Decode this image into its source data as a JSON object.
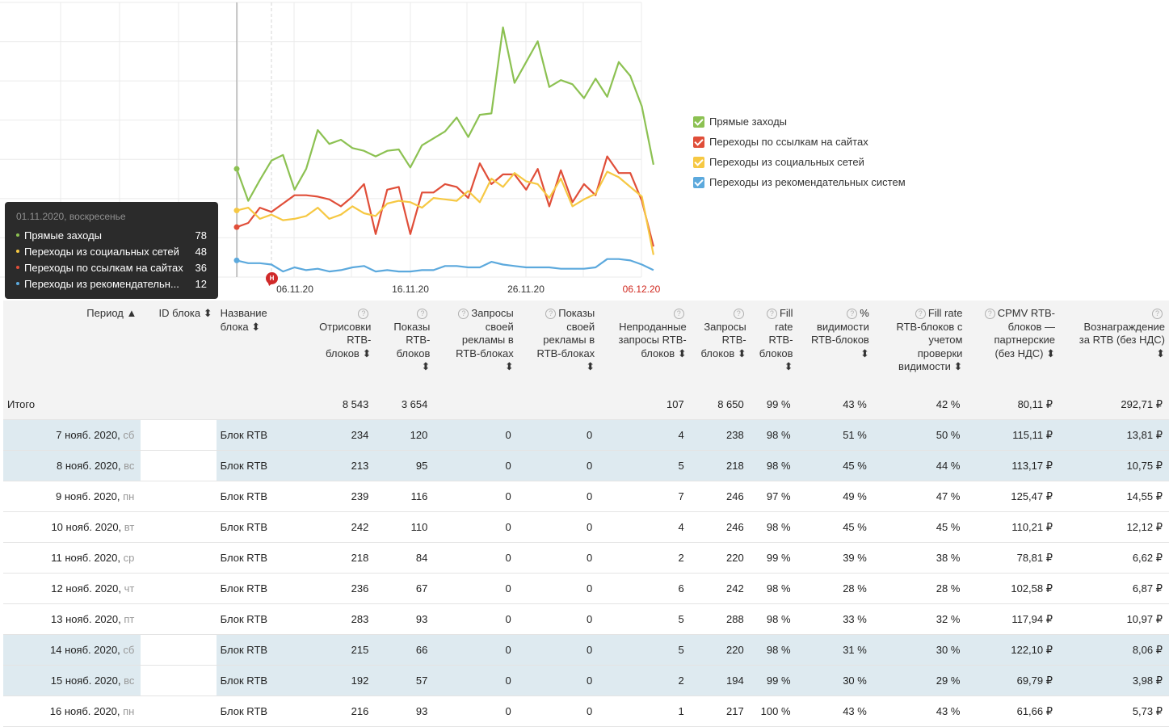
{
  "chart_data": {
    "type": "line",
    "x_ticks": [
      "06.11.20",
      "16.11.20",
      "26.11.20",
      "06.12.20"
    ],
    "highlighted_tick": "06.12.20",
    "series": [
      {
        "name": "Прямые заходы",
        "color": "#8cc152",
        "values": [
          78,
          55,
          70,
          84,
          88,
          63,
          78,
          106,
          96,
          99,
          93,
          91,
          87,
          91,
          92,
          79,
          95,
          100,
          105,
          115,
          101,
          117,
          118,
          180,
          140,
          155,
          170,
          137,
          142,
          139,
          129,
          143,
          130,
          155,
          145,
          123,
          81
        ]
      },
      {
        "name": "Переходы по ссылкам на сайтах",
        "color": "#e04e39",
        "values": [
          36,
          39,
          50,
          47,
          53,
          59,
          59,
          58,
          56,
          51,
          58,
          67,
          31,
          63,
          65,
          31,
          61,
          61,
          67,
          65,
          57,
          82,
          67,
          74,
          74,
          63,
          78,
          51,
          77,
          54,
          67,
          59,
          87,
          75,
          75,
          55,
          22
        ]
      },
      {
        "name": "Переходы из социальных сетей",
        "color": "#f6c843",
        "values": [
          48,
          50,
          42,
          45,
          41,
          42,
          44,
          50,
          42,
          45,
          51,
          46,
          44,
          53,
          55,
          54,
          50,
          57,
          56,
          55,
          62,
          54,
          71,
          65,
          75,
          69,
          67,
          57,
          71,
          51,
          56,
          60,
          76,
          72,
          65,
          58,
          16
        ]
      },
      {
        "name": "Переходы из рекомендательных систем",
        "color": "#5ca9dd",
        "values": [
          12,
          10,
          10,
          9,
          4,
          7,
          5,
          6,
          4,
          5,
          7,
          8,
          4,
          5,
          4,
          4,
          5,
          5,
          8,
          8,
          7,
          7,
          11,
          9,
          8,
          7,
          7,
          7,
          6,
          6,
          6,
          7,
          13,
          13,
          12,
          9,
          5
        ]
      }
    ],
    "legend_position": "right",
    "grid": true,
    "tooltip": {
      "date": "01.11.2020, воскресенье",
      "rows": [
        {
          "label": "Прямые заходы",
          "value": "78",
          "color": "#8cc152"
        },
        {
          "label": "Переходы из социальных сетей",
          "value": "48",
          "color": "#f6c843"
        },
        {
          "label": "Переходы по ссылкам на сайтах",
          "value": "36",
          "color": "#e04e39"
        },
        {
          "label": "Переходы из рекомендательн...",
          "value": "12",
          "color": "#5ca9dd"
        }
      ]
    },
    "marker_label": "Н"
  },
  "legend": [
    {
      "label": "Прямые заходы",
      "color": "#8cc152"
    },
    {
      "label": "Переходы по ссылкам на сайтах",
      "color": "#e04e39"
    },
    {
      "label": "Переходы из социальных сетей",
      "color": "#f6c843"
    },
    {
      "label": "Переходы из рекомендательных систем",
      "color": "#5ca9dd"
    }
  ],
  "table": {
    "columns": [
      {
        "lines": [
          "Период ▲"
        ],
        "help": false
      },
      {
        "lines": [
          "ID блока ⬍"
        ],
        "help": false
      },
      {
        "lines": [
          "Название",
          "блока ⬍"
        ],
        "help": false
      },
      {
        "lines": [
          "",
          "Отрисовки",
          "RTB-",
          "блоков ⬍"
        ],
        "help": true
      },
      {
        "lines": [
          "",
          "Показы",
          "RTB-",
          "блоков",
          "⬍"
        ],
        "help": true
      },
      {
        "lines": [
          "Запросы",
          "своей",
          "рекламы в",
          "RTB-блоках",
          "⬍"
        ],
        "help": true
      },
      {
        "lines": [
          "Показы",
          "своей",
          "рекламы в",
          "RTB-блоках",
          "⬍"
        ],
        "help": true
      },
      {
        "lines": [
          "",
          "Непроданные",
          "запросы RTB-",
          "блоков ⬍"
        ],
        "help": true
      },
      {
        "lines": [
          "",
          "Запросы",
          "RTB-",
          "блоков ⬍"
        ],
        "help": true
      },
      {
        "lines": [
          "Fill",
          "rate",
          "RTB-",
          "блоков",
          "⬍"
        ],
        "help": true
      },
      {
        "lines": [
          "%",
          "видимости",
          "RTB-блоков",
          "⬍"
        ],
        "help": true
      },
      {
        "lines": [
          "Fill rate",
          "RTB-блоков с",
          "учетом",
          "проверки",
          "видимости ⬍"
        ],
        "help": true
      },
      {
        "lines": [
          "CPMV RTB-",
          "блоков —",
          "партнерские",
          "(без НДС) ⬍"
        ],
        "help": true
      },
      {
        "lines": [
          "",
          "Вознаграждение",
          "за RTB (без НДС)",
          "⬍"
        ],
        "help": true
      }
    ],
    "total": {
      "label": "Итого",
      "cells": [
        "",
        "",
        "8 543",
        "3 654",
        "",
        "",
        "107",
        "8 650",
        "99 %",
        "43 %",
        "42 %",
        "80,11 ₽",
        "292,71 ₽"
      ]
    },
    "rows": [
      {
        "date": "7 нояб. 2020, ",
        "dow": "сб",
        "hl": true,
        "cells": [
          "",
          "Блок RTB",
          "234",
          "120",
          "0",
          "0",
          "4",
          "238",
          "98 %",
          "51 %",
          "50 %",
          "115,11 ₽",
          "13,81 ₽"
        ]
      },
      {
        "date": "8 нояб. 2020, ",
        "dow": "вс",
        "hl": true,
        "cells": [
          "",
          "Блок RTB",
          "213",
          "95",
          "0",
          "0",
          "5",
          "218",
          "98 %",
          "45 %",
          "44 %",
          "113,17 ₽",
          "10,75 ₽"
        ]
      },
      {
        "date": "9 нояб. 2020, ",
        "dow": "пн",
        "hl": false,
        "cells": [
          "",
          "Блок RTB",
          "239",
          "116",
          "0",
          "0",
          "7",
          "246",
          "97 %",
          "49 %",
          "47 %",
          "125,47 ₽",
          "14,55 ₽"
        ]
      },
      {
        "date": "10 нояб. 2020, ",
        "dow": "вт",
        "hl": false,
        "cells": [
          "",
          "Блок RTB",
          "242",
          "110",
          "0",
          "0",
          "4",
          "246",
          "98 %",
          "45 %",
          "45 %",
          "110,21 ₽",
          "12,12 ₽"
        ]
      },
      {
        "date": "11 нояб. 2020, ",
        "dow": "ср",
        "hl": false,
        "cells": [
          "",
          "Блок RTB",
          "218",
          "84",
          "0",
          "0",
          "2",
          "220",
          "99 %",
          "39 %",
          "38 %",
          "78,81 ₽",
          "6,62 ₽"
        ]
      },
      {
        "date": "12 нояб. 2020, ",
        "dow": "чт",
        "hl": false,
        "cells": [
          "",
          "Блок RTB",
          "236",
          "67",
          "0",
          "0",
          "6",
          "242",
          "98 %",
          "28 %",
          "28 %",
          "102,58 ₽",
          "6,87 ₽"
        ]
      },
      {
        "date": "13 нояб. 2020, ",
        "dow": "пт",
        "hl": false,
        "cells": [
          "",
          "Блок RTB",
          "283",
          "93",
          "0",
          "0",
          "5",
          "288",
          "98 %",
          "33 %",
          "32 %",
          "117,94 ₽",
          "10,97 ₽"
        ]
      },
      {
        "date": "14 нояб. 2020, ",
        "dow": "сб",
        "hl": true,
        "cells": [
          "",
          "Блок RTB",
          "215",
          "66",
          "0",
          "0",
          "5",
          "220",
          "98 %",
          "31 %",
          "30 %",
          "122,10 ₽",
          "8,06 ₽"
        ]
      },
      {
        "date": "15 нояб. 2020, ",
        "dow": "вс",
        "hl": true,
        "cells": [
          "",
          "Блок RTB",
          "192",
          "57",
          "0",
          "0",
          "2",
          "194",
          "99 %",
          "30 %",
          "29 %",
          "69,79 ₽",
          "3,98 ₽"
        ]
      },
      {
        "date": "16 нояб. 2020, ",
        "dow": "пн",
        "hl": false,
        "cells": [
          "",
          "Блок RTB",
          "216",
          "93",
          "0",
          "0",
          "1",
          "217",
          "100 %",
          "43 %",
          "43 %",
          "61,66 ₽",
          "5,73 ₽"
        ]
      }
    ]
  }
}
